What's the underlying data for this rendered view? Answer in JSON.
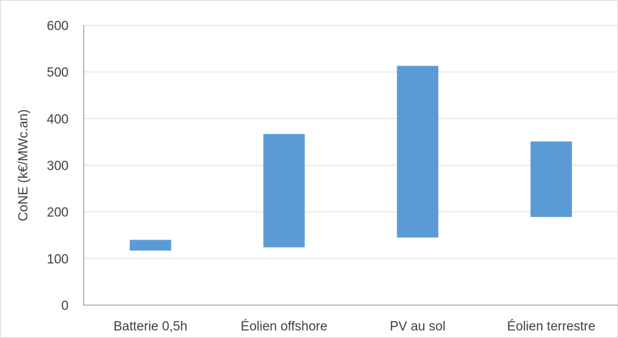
{
  "chart_data": {
    "type": "bar",
    "subtype": "floating-range",
    "title": "",
    "xlabel": "",
    "ylabel": "CoNE (k€/MWc.an)",
    "ylim": [
      0,
      600
    ],
    "yticks": [
      0,
      100,
      200,
      300,
      400,
      500,
      600
    ],
    "grid": true,
    "legend": "none",
    "bar_color": "#5b9bd5",
    "categories": [
      "Batterie 0,5h",
      "Éolien offshore",
      "PV au sol",
      "Éolien terrestre"
    ],
    "ranges": [
      [
        117,
        140
      ],
      [
        124,
        367
      ],
      [
        145,
        513
      ],
      [
        189,
        351
      ]
    ]
  }
}
